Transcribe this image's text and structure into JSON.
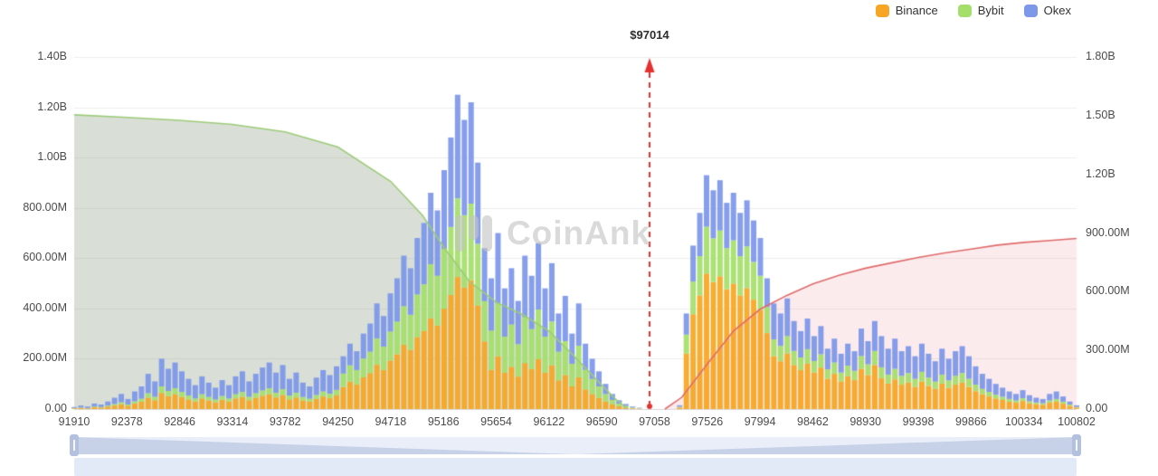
{
  "watermark": {
    "text": "CoinAnk"
  },
  "legend": {
    "items": [
      {
        "label": "Binance",
        "color": "#F6A622"
      },
      {
        "label": "Bybit",
        "color": "#A5DF6B"
      },
      {
        "label": "Okex",
        "color": "#7D97E9"
      }
    ]
  },
  "annotation": {
    "label": "$97014",
    "price": 97014,
    "color": "#E5302E"
  },
  "navigator": {
    "track_color": "#e9eef9",
    "shadow_color": "#c7d2e9",
    "strip_color": "#e2eaf8",
    "handle_color": "#b3c0de"
  },
  "chart_data": {
    "type": "bar",
    "stacked": true,
    "title": "",
    "unit": "millions_usd",
    "x_axis": {
      "min": 91910,
      "max": 100802,
      "ticks": [
        91910,
        92378,
        92846,
        93314,
        93782,
        94250,
        94718,
        95186,
        95654,
        96122,
        96590,
        97058,
        97526,
        97994,
        98462,
        98930,
        99398,
        99866,
        100334,
        100802
      ]
    },
    "left_axis": {
      "max_millions": 1400,
      "tick_labels": [
        "1.40B",
        "1.20B",
        "1.00B",
        "800.00M",
        "600.00M",
        "400.00M",
        "200.00M",
        "0.00"
      ]
    },
    "right_axis": {
      "max_millions": 1800,
      "tick_labels": [
        "1.80B",
        "1.50B",
        "1.20B",
        "900.00M",
        "600.00M",
        "300.00M",
        "0.00"
      ]
    },
    "bars": {
      "count": 150,
      "price_start": 91910,
      "price_step": 59.677,
      "series": [
        {
          "name": "Binance",
          "color": "#F6A622",
          "values": [
            3,
            4,
            3,
            7,
            6,
            10,
            14,
            19,
            13,
            22,
            29,
            45,
            35,
            64,
            51,
            59,
            48,
            38,
            30,
            42,
            34,
            27,
            37,
            30,
            42,
            48,
            35,
            45,
            53,
            59,
            46,
            56,
            38,
            46,
            34,
            29,
            40,
            50,
            43,
            54,
            88,
            109,
            97,
            126,
            143,
            176,
            155,
            193,
            218,
            256,
            235,
            286,
            311,
            361,
            332,
            399,
            454,
            525,
            483,
            512,
            412,
            269,
            156,
            210,
            144,
            168,
            129,
            183,
            159,
            198,
            144,
            174,
            114,
            135,
            90,
            126,
            78,
            60,
            45,
            30,
            18,
            11,
            6,
            3,
            2,
            0,
            0,
            0,
            0,
            0,
            6,
            220,
            377,
            452,
            539,
            505,
            528,
            476,
            499,
            452,
            481,
            435,
            394,
            302,
            210,
            190,
            220,
            175,
            155,
            180,
            145,
            165,
            120,
            140,
            110,
            130,
            115,
            160,
            135,
            175,
            122,
            101,
            118,
            97,
            105,
            88,
            109,
            92,
            80,
            101,
            84,
            97,
            105,
            88,
            71,
            59,
            50,
            42,
            36,
            29,
            25,
            32,
            23,
            19,
            17,
            25,
            29,
            21,
            13,
            6
          ]
        },
        {
          "name": "Bybit",
          "color": "#A5DF6B",
          "values": [
            1,
            2,
            1,
            3,
            2,
            4,
            6,
            8,
            5,
            9,
            12,
            18,
            14,
            26,
            21,
            24,
            20,
            16,
            12,
            17,
            14,
            11,
            15,
            12,
            17,
            20,
            14,
            18,
            21,
            24,
            19,
            23,
            16,
            19,
            14,
            12,
            16,
            20,
            18,
            22,
            53,
            65,
            58,
            75,
            85,
            105,
            93,
            115,
            130,
            153,
            140,
            170,
            185,
            215,
            198,
            238,
            270,
            313,
            288,
            305,
            245,
            160,
            156,
            210,
            144,
            168,
            129,
            183,
            159,
            198,
            144,
            174,
            114,
            135,
            90,
            126,
            78,
            60,
            45,
            30,
            18,
            10,
            6,
            3,
            1,
            0,
            0,
            0,
            0,
            0,
            3,
            76,
            130,
            156,
            186,
            174,
            182,
            164,
            172,
            156,
            166,
            150,
            136,
            104,
            67,
            61,
            70,
            56,
            50,
            58,
            46,
            53,
            38,
            45,
            35,
            42,
            37,
            51,
            43,
            56,
            44,
            36,
            42,
            35,
            38,
            32,
            39,
            33,
            29,
            36,
            30,
            35,
            38,
            32,
            26,
            21,
            18,
            15,
            13,
            11,
            9,
            11,
            8,
            7,
            6,
            9,
            11,
            8,
            5,
            2
          ]
        },
        {
          "name": "Okex",
          "color": "#7D97E9",
          "values": [
            4,
            8,
            6,
            12,
            10,
            16,
            25,
            33,
            22,
            39,
            49,
            77,
            61,
            110,
            88,
            102,
            82,
            66,
            53,
            71,
            57,
            47,
            63,
            53,
            71,
            82,
            61,
            77,
            91,
            102,
            80,
            96,
            66,
            80,
            57,
            49,
            69,
            85,
            74,
            94,
            69,
            86,
            75,
            99,
            112,
            139,
            122,
            152,
            172,
            201,
            185,
            224,
            244,
            284,
            260,
            313,
            356,
            412,
            379,
            403,
            323,
            211,
            208,
            280,
            192,
            224,
            172,
            244,
            212,
            264,
            192,
            232,
            152,
            180,
            120,
            168,
            104,
            80,
            60,
            40,
            24,
            14,
            8,
            4,
            2,
            0,
            0,
            0,
            0,
            0,
            6,
            84,
            143,
            172,
            205,
            191,
            200,
            180,
            189,
            172,
            183,
            165,
            150,
            114,
            143,
            129,
            150,
            119,
            105,
            122,
            99,
            112,
            82,
            95,
            75,
            88,
            78,
            109,
            92,
            119,
            124,
            103,
            120,
            98,
            107,
            90,
            112,
            95,
            81,
            103,
            86,
            98,
            107,
            90,
            73,
            60,
            52,
            43,
            36,
            30,
            26,
            32,
            24,
            19,
            17,
            26,
            30,
            21,
            12,
            7
          ]
        }
      ]
    },
    "cumulative_lines": [
      {
        "name": "cumulative-left",
        "axis": "left",
        "line_color": "#9CCB78",
        "fill_color": "rgba(130,150,120,0.30)",
        "points": [
          [
            91910,
            1170
          ],
          [
            92378,
            1160
          ],
          [
            92846,
            1148
          ],
          [
            93314,
            1132
          ],
          [
            93782,
            1102
          ],
          [
            94250,
            1042
          ],
          [
            94718,
            905
          ],
          [
            95000,
            770
          ],
          [
            95186,
            645
          ],
          [
            95420,
            505
          ],
          [
            95654,
            425
          ],
          [
            95890,
            375
          ],
          [
            96122,
            310
          ],
          [
            96356,
            205
          ],
          [
            96590,
            95
          ],
          [
            96700,
            45
          ],
          [
            96820,
            0
          ]
        ]
      },
      {
        "name": "cumulative-right",
        "axis": "right",
        "line_color": "#E06A6A",
        "fill_color": "rgba(235,130,140,0.16)",
        "points": [
          [
            97150,
            0
          ],
          [
            97300,
            60
          ],
          [
            97526,
            230
          ],
          [
            97760,
            400
          ],
          [
            97994,
            510
          ],
          [
            98228,
            580
          ],
          [
            98462,
            640
          ],
          [
            98700,
            685
          ],
          [
            98930,
            720
          ],
          [
            99164,
            748
          ],
          [
            99398,
            775
          ],
          [
            99632,
            798
          ],
          [
            99866,
            818
          ],
          [
            100100,
            838
          ],
          [
            100334,
            852
          ],
          [
            100568,
            862
          ],
          [
            100802,
            872
          ]
        ]
      }
    ]
  }
}
